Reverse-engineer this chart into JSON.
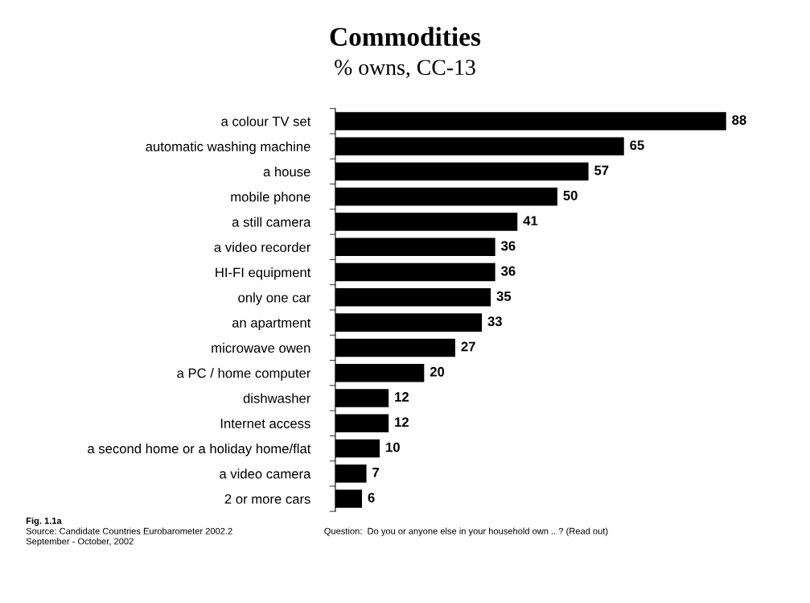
{
  "chart_data": {
    "type": "bar",
    "orientation": "horizontal",
    "title": "Commodities",
    "subtitle": "% owns, CC-13",
    "categories": [
      "a colour TV set",
      "automatic washing machine",
      "a house",
      "mobile phone",
      "a still camera",
      "a video recorder",
      "HI-FI equipment",
      "only one car",
      "an apartment",
      "microwave owen",
      "a PC / home computer",
      "dishwasher",
      "Internet access",
      "a second home or a holiday home/flat",
      "a video camera",
      "2 or more cars"
    ],
    "values": [
      88,
      65,
      57,
      50,
      41,
      36,
      36,
      35,
      33,
      27,
      20,
      12,
      12,
      10,
      7,
      6
    ],
    "color": "#000000",
    "data_labels": true,
    "grid": false,
    "legend": false,
    "annotations": [
      "Fig. 1.1a",
      "Source: Candidate Countries Eurobarometer 2002.2",
      "September - October, 2002",
      "Question:  Do you or anyone else in your household own .. ? (Read out)"
    ]
  }
}
